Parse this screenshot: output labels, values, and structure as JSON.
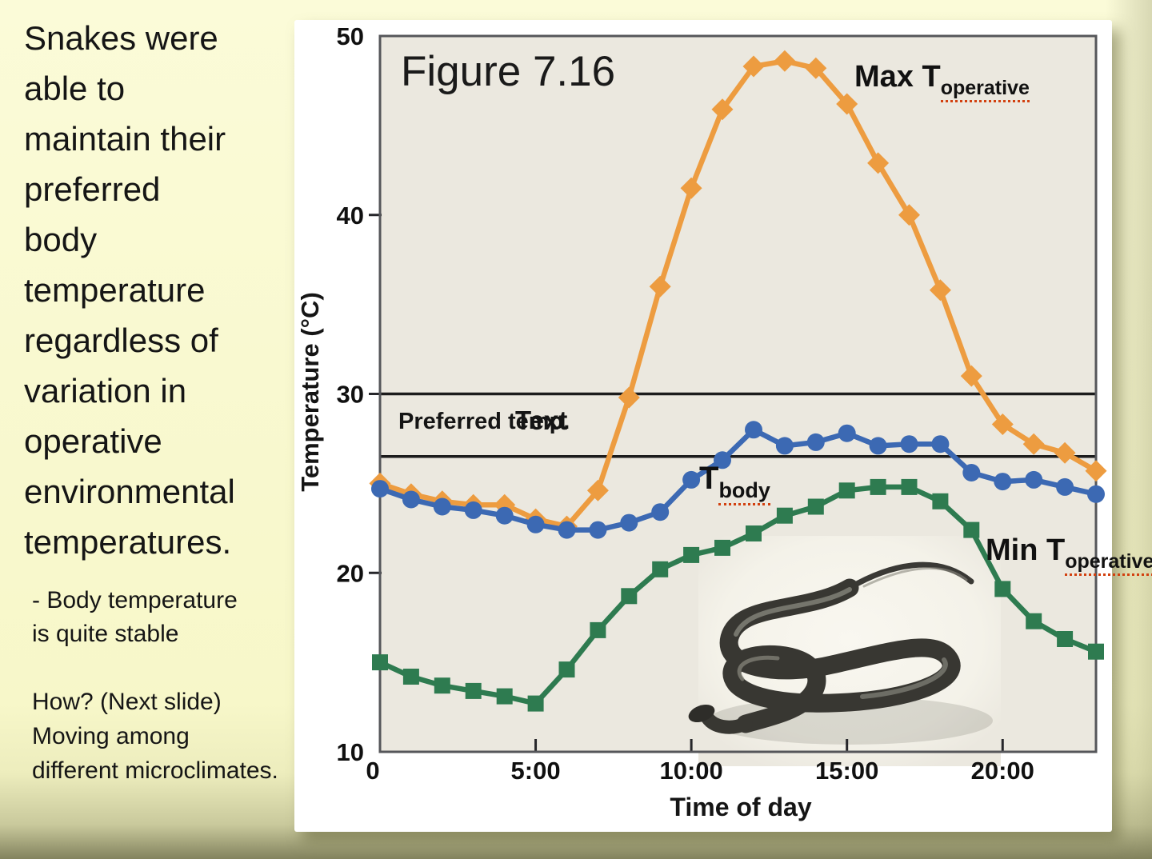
{
  "slide": {
    "main_text": "Snakes were\nable to\nmaintain their\npreferred\nbody\ntemperature\nregardless of\nvariation in\noperative\nenvironmental\ntemperatures.",
    "bullet_text": "-  Body temperature\nis quite stable",
    "footer_text": "How? (Next slide)\nMoving among\ndifferent microclimates."
  },
  "chart_data": {
    "type": "line",
    "title": "Figure 7.16",
    "xlabel": "Time of day",
    "ylabel": "Temperature (°C)",
    "xlim": [
      0,
      23
    ],
    "ylim": [
      10,
      50
    ],
    "grid": false,
    "x_hours": [
      0,
      1,
      2,
      3,
      4,
      5,
      6,
      7,
      8,
      9,
      10,
      11,
      12,
      13,
      14,
      15,
      16,
      17,
      18,
      19,
      20,
      21,
      22,
      23
    ],
    "x_ticks": [
      {
        "h": 0,
        "label": "0"
      },
      {
        "h": 5,
        "label": "5:00"
      },
      {
        "h": 10,
        "label": "10:00"
      },
      {
        "h": 15,
        "label": "15:00"
      },
      {
        "h": 20,
        "label": "20:00"
      }
    ],
    "y_ticks": [
      {
        "v": 50,
        "label": "50"
      },
      {
        "v": 40,
        "label": "40"
      },
      {
        "v": 30,
        "label": "30"
      },
      {
        "v": 20,
        "label": "20"
      },
      {
        "v": 10,
        "label": "10"
      }
    ],
    "ref_lines": [
      30,
      26.5
    ],
    "ref_label": {
      "text": "Preferred temp.",
      "overlap_text": "Text"
    },
    "series": [
      {
        "name": "Max T operative",
        "label_main": "Max T",
        "label_sub": "operative",
        "marker": "diamond",
        "color": "#ED9C40",
        "values": [
          25.0,
          24.4,
          24.0,
          23.8,
          23.8,
          23.0,
          22.6,
          24.6,
          29.8,
          36.0,
          41.5,
          45.9,
          48.3,
          48.6,
          48.2,
          46.2,
          42.9,
          40.0,
          35.8,
          31.0,
          28.3,
          27.2,
          26.7,
          25.7
        ]
      },
      {
        "name": "T body",
        "label_main": "T",
        "label_sub": "body",
        "marker": "circle",
        "color": "#3C69B3",
        "values": [
          24.7,
          24.1,
          23.7,
          23.5,
          23.2,
          22.7,
          22.4,
          22.4,
          22.8,
          23.4,
          25.2,
          26.3,
          28.0,
          27.1,
          27.3,
          27.8,
          27.1,
          27.2,
          27.2,
          25.6,
          25.1,
          25.2,
          24.8,
          24.4
        ]
      },
      {
        "name": "Min T operative",
        "label_main": "Min T",
        "label_sub": "operative",
        "marker": "square",
        "color": "#2E7B50",
        "values": [
          15.0,
          14.2,
          13.7,
          13.4,
          13.1,
          12.7,
          14.6,
          16.8,
          18.7,
          20.2,
          21.0,
          21.4,
          22.2,
          23.2,
          23.7,
          24.6,
          24.8,
          24.8,
          24.0,
          22.4,
          19.1,
          17.3,
          16.3,
          15.6
        ]
      }
    ],
    "colors": {
      "slide_bg": "#F8F8CB",
      "panel_bg": "#FFFFFF",
      "plot_bg": "#EBE8DF",
      "axis": "#55565A",
      "ref_line": "#1C1C1C",
      "text": "#111111"
    }
  }
}
